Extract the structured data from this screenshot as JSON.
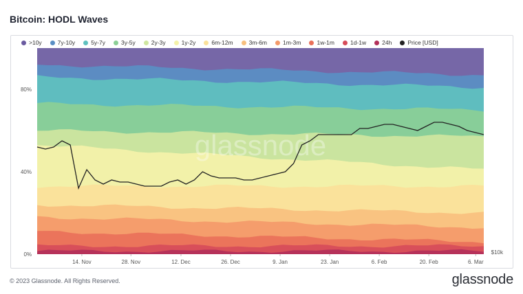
{
  "title": "Bitcoin: HODL Waves",
  "watermark": "glassnode",
  "footer": {
    "copyright": "© 2023 Glassnode. All Rights Reserved.",
    "brand": "glassnode"
  },
  "legend": [
    {
      "label": ">10y",
      "color": "#6a5aa0"
    },
    {
      "label": "7y-10y",
      "color": "#5a8fc4"
    },
    {
      "label": "5y-7y",
      "color": "#5fc1bf"
    },
    {
      "label": "3y-5y",
      "color": "#8ccf96"
    },
    {
      "label": "2y-3y",
      "color": "#cfe6a0"
    },
    {
      "label": "1y-2y",
      "color": "#f5f2a9"
    },
    {
      "label": "6m-12m",
      "color": "#fbe19a"
    },
    {
      "label": "3m-6m",
      "color": "#f8c07f"
    },
    {
      "label": "1m-3m",
      "color": "#f49a6a"
    },
    {
      "label": "1w-1m",
      "color": "#e9715a"
    },
    {
      "label": "1d-1w",
      "color": "#d64c5a"
    },
    {
      "label": "24h",
      "color": "#b3305a"
    },
    {
      "label": "Price [USD]",
      "color": "#222222"
    }
  ],
  "chart_data": {
    "type": "area",
    "title": "Bitcoin: HODL Waves",
    "x_ticks": [
      "14. Nov",
      "28. Nov",
      "12. Dec",
      "26. Dec",
      "9. Jan",
      "23. Jan",
      "6. Feb",
      "20. Feb",
      "6. Mar"
    ],
    "y_ticks": [
      "0%",
      "40%",
      "80%"
    ],
    "right_axis_tick": "$10k",
    "ylim": [
      0,
      100
    ],
    "stacked_series_upper_bounds_percent": [
      {
        "name": "24h",
        "start": 1.5,
        "end": 1.5
      },
      {
        "name": "1d-1w",
        "start": 4,
        "end": 4
      },
      {
        "name": "1w-1m",
        "start": 11,
        "end": 6
      },
      {
        "name": "1m-3m",
        "start": 18,
        "end": 13
      },
      {
        "name": "3m-6m",
        "start": 24,
        "end": 20
      },
      {
        "name": "6m-12m",
        "start": 33,
        "end": 33
      },
      {
        "name": "1y-2y",
        "start": 53,
        "end": 41
      },
      {
        "name": "2y-3y",
        "start": 60,
        "end": 57
      },
      {
        "name": "3y-5y",
        "start": 73,
        "end": 70
      },
      {
        "name": "5y-7y",
        "start": 86,
        "end": 81
      },
      {
        "name": "7y-10y",
        "start": 92,
        "end": 87
      },
      {
        "name": ">10y",
        "start": 100,
        "end": 100
      }
    ],
    "price_line_percent_of_axis": [
      52,
      51,
      52,
      55,
      53,
      32,
      41,
      36,
      34,
      36,
      35,
      35,
      34,
      33,
      33,
      33,
      35,
      36,
      34,
      36,
      40,
      38,
      37,
      37,
      37,
      36,
      36,
      37,
      38,
      39,
      40,
      44,
      53,
      55,
      58,
      58,
      58,
      58,
      58,
      61,
      61,
      62,
      63,
      63,
      62,
      61,
      60,
      62,
      64,
      64,
      63,
      62,
      60,
      59,
      58
    ]
  }
}
